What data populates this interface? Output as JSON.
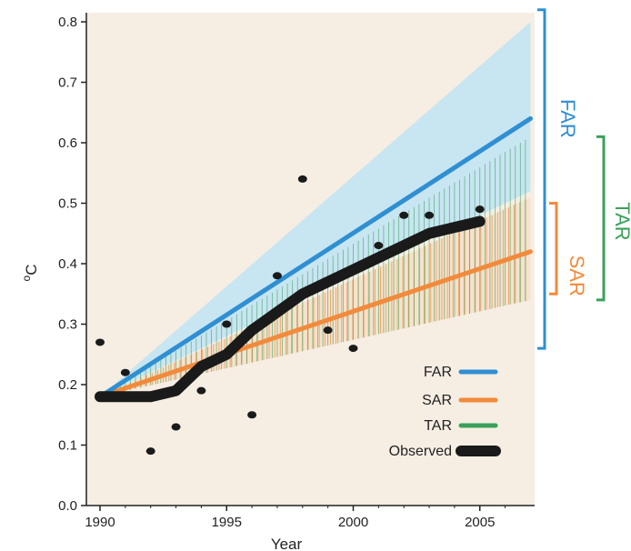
{
  "chart_data": {
    "type": "line",
    "title": "",
    "xlabel": "Year",
    "ylabel_main": "C",
    "ylabel_degree": "o",
    "xlim": [
      1989.5,
      2007
    ],
    "ylim": [
      0.0,
      0.82
    ],
    "x_ticks": [
      1990,
      1995,
      2000,
      2005
    ],
    "y_ticks": [
      "0.0",
      "0.1",
      "0.2",
      "0.3",
      "0.4",
      "0.5",
      "0.6",
      "0.7",
      "0.8"
    ],
    "grid": false,
    "legend_position": "bottom-right",
    "series": [
      {
        "name": "FAR",
        "color": "#2f8fd2",
        "x": [
          1990,
          2007
        ],
        "y": [
          0.18,
          0.64
        ]
      },
      {
        "name": "SAR",
        "color": "#f28a3c",
        "x": [
          1990,
          2007
        ],
        "y": [
          0.18,
          0.42
        ]
      },
      {
        "name": "TAR",
        "color": "#3aa15a",
        "x": [
          1990,
          2007
        ],
        "y": [
          0.18,
          0.47
        ]
      },
      {
        "name": "Observed",
        "color": "#1a1a1a",
        "x": [
          1990,
          1991,
          1992,
          1993,
          1994,
          1995,
          1996,
          1997,
          1998,
          1999,
          2000,
          2001,
          2002,
          2003,
          2004,
          2005
        ],
        "y": [
          0.18,
          0.18,
          0.18,
          0.19,
          0.23,
          0.25,
          0.29,
          0.32,
          0.35,
          0.37,
          0.39,
          0.41,
          0.43,
          0.45,
          0.46,
          0.47
        ]
      }
    ],
    "ranges": [
      {
        "name": "FAR",
        "x": [
          1990,
          2007
        ],
        "low": [
          0.18,
          0.52
        ],
        "high": [
          0.18,
          0.8
        ]
      },
      {
        "name": "SAR",
        "x": [
          1990,
          2007
        ],
        "low": [
          0.18,
          0.34
        ],
        "high": [
          0.18,
          0.51
        ]
      },
      {
        "name": "TAR",
        "x": [
          1990,
          2007
        ],
        "low": [
          0.18,
          0.34
        ],
        "high": [
          0.18,
          0.61
        ]
      }
    ],
    "observations": {
      "x": [
        1990,
        1991,
        1992,
        1993,
        1994,
        1995,
        1996,
        1997,
        1998,
        1999,
        2000,
        2001,
        2002,
        2003,
        2005
      ],
      "y": [
        0.27,
        0.22,
        0.09,
        0.13,
        0.19,
        0.3,
        0.15,
        0.38,
        0.54,
        0.29,
        0.26,
        0.43,
        0.48,
        0.48,
        0.49
      ]
    },
    "brackets": [
      {
        "label": "FAR",
        "color": "#2f8fd2",
        "y": [
          0.26,
          0.82
        ]
      },
      {
        "label": "SAR",
        "color": "#f28a3c",
        "y": [
          0.35,
          0.5
        ]
      },
      {
        "label": "TAR",
        "color": "#3aa15a",
        "y": [
          0.34,
          0.61
        ]
      }
    ],
    "colors": {
      "background": "#f6eee3",
      "far_shade": "#bfe3f4",
      "far": "#2f8fd2",
      "sar": "#f28a3c",
      "tar": "#3aa15a",
      "observed": "#1a1a1a"
    }
  }
}
